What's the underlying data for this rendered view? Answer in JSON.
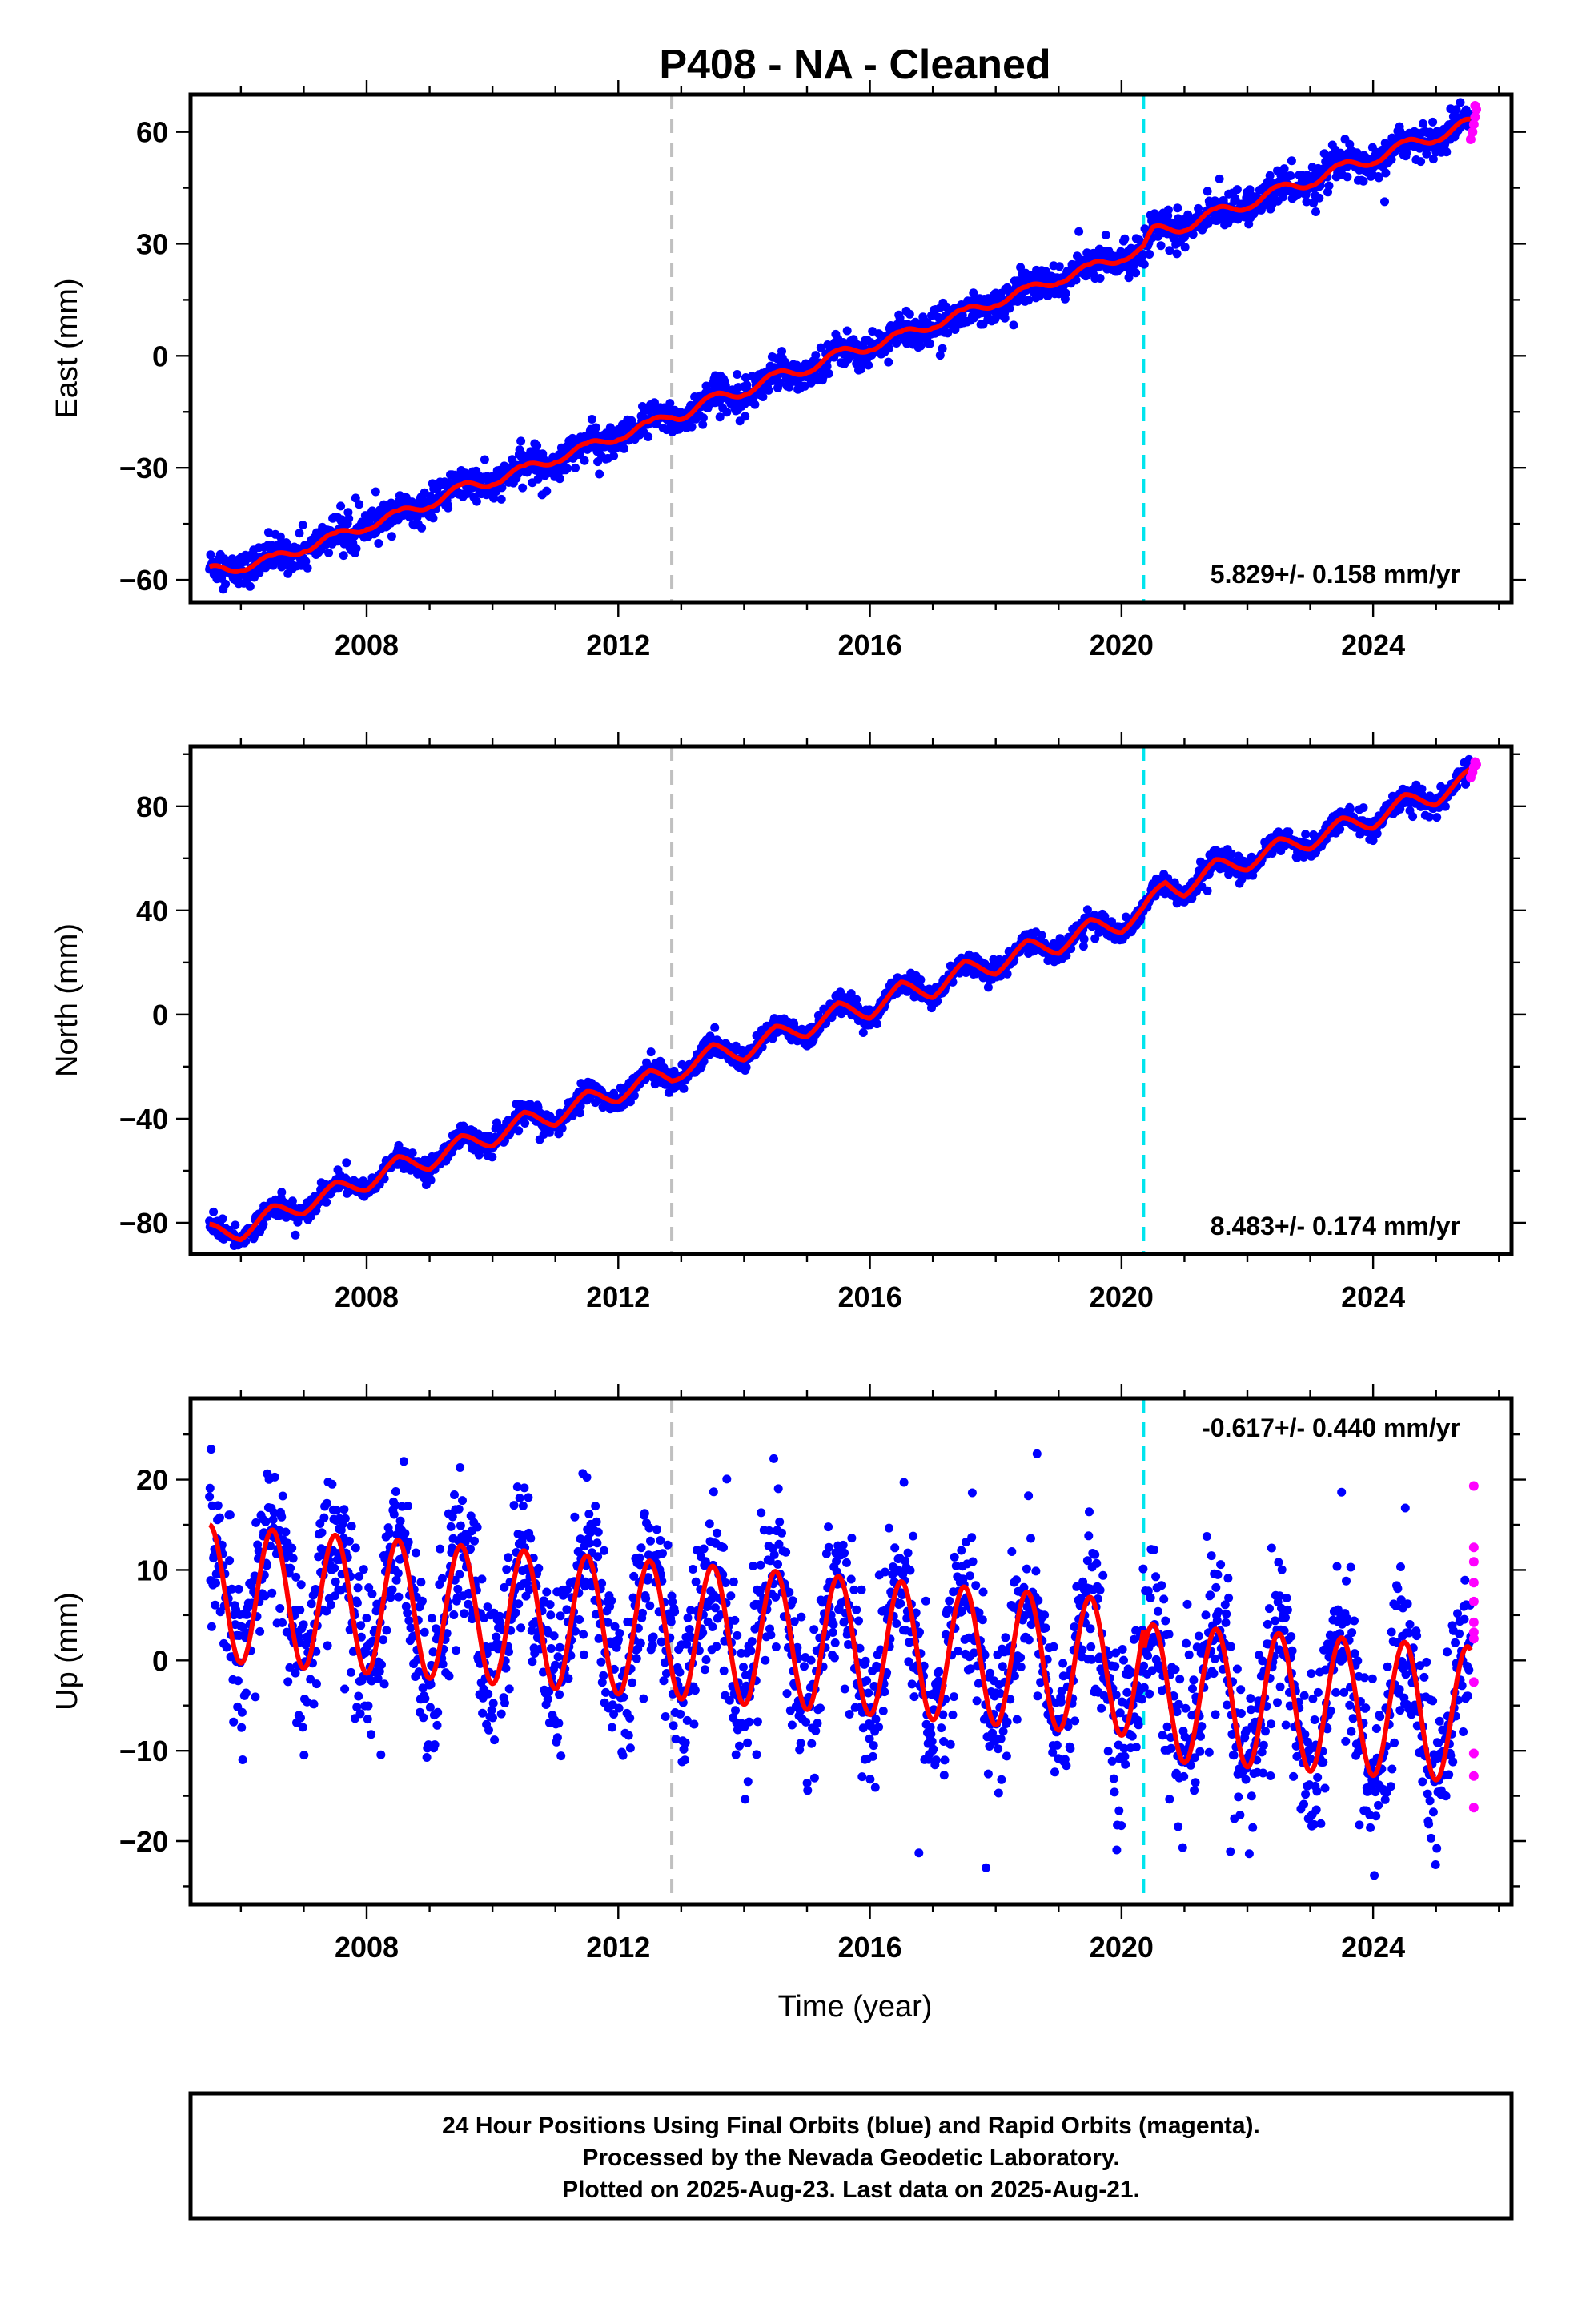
{
  "title": "P408  - NA - Cleaned",
  "caption": {
    "lines": [
      "24 Hour Positions Using Final Orbits (blue) and Rapid Orbits (magenta).",
      "Processed by the Nevada Geodetic Laboratory.",
      "Plotted on 2025-Aug-23. Last data on 2025-Aug-21."
    ]
  },
  "colors": {
    "final_points": "#0000ff",
    "rapid_points": "#ff00ff",
    "model_fit": "#ff0000",
    "event_line_gray": "#c0c0c0",
    "event_line_cyan": "#00e5ee"
  },
  "chart_data": [
    {
      "type": "scatter",
      "id": "east",
      "ylabel": "East (mm)",
      "xlabel": "",
      "rate_label": "5.829+/- 0.158 mm/yr",
      "rate_placement": "bottom-right",
      "xlim": [
        2005.2,
        2026.2
      ],
      "ylim": [
        -66,
        70
      ],
      "yticks": [
        -60,
        -30,
        0,
        30,
        60
      ],
      "xticks": [
        2008,
        2012,
        2016,
        2020,
        2024
      ],
      "xticklabels": [
        "2008",
        "2012",
        "2016",
        "2020",
        "2024"
      ],
      "event_lines": [
        {
          "x": 2012.85,
          "color": "gray"
        },
        {
          "x": 2020.35,
          "color": "cyan"
        }
      ],
      "fit_points": [
        [
          2005.5,
          -59
        ],
        [
          2006,
          -55
        ],
        [
          2006.5,
          -56
        ],
        [
          2007,
          -50
        ],
        [
          2007.5,
          -50
        ],
        [
          2008,
          -44
        ],
        [
          2008.5,
          -44
        ],
        [
          2009,
          -38
        ],
        [
          2009.5,
          -37
        ],
        [
          2010,
          -32
        ],
        [
          2010.5,
          -32
        ],
        [
          2011,
          -26
        ],
        [
          2011.5,
          -26
        ],
        [
          2012,
          -20
        ],
        [
          2012.5,
          -20
        ],
        [
          2012.85,
          -15
        ],
        [
          2013.5,
          -13
        ],
        [
          2014,
          -8
        ],
        [
          2014.5,
          -7
        ],
        [
          2015,
          -2
        ],
        [
          2015.5,
          -1
        ],
        [
          2016,
          4
        ],
        [
          2016.5,
          4
        ],
        [
          2017,
          10
        ],
        [
          2017.5,
          10
        ],
        [
          2018,
          16
        ],
        [
          2018.5,
          16
        ],
        [
          2019,
          22
        ],
        [
          2019.5,
          22
        ],
        [
          2020,
          28
        ],
        [
          2020.35,
          28
        ],
        [
          2020.5,
          32
        ],
        [
          2021,
          36
        ],
        [
          2021.5,
          37
        ],
        [
          2022,
          42
        ],
        [
          2022.5,
          43
        ],
        [
          2023,
          48
        ],
        [
          2023.5,
          49
        ],
        [
          2024,
          54
        ],
        [
          2024.5,
          55
        ],
        [
          2025,
          60
        ],
        [
          2025.55,
          61
        ]
      ],
      "seasonal_amplitude": 2.5,
      "scatter_noise": 2.2,
      "rapid_points": [
        [
          2025.55,
          58
        ],
        [
          2025.58,
          60
        ],
        [
          2025.6,
          62
        ],
        [
          2025.62,
          64
        ],
        [
          2025.64,
          66
        ],
        [
          2025.62,
          67
        ]
      ]
    },
    {
      "type": "scatter",
      "id": "north",
      "ylabel": "North (mm)",
      "xlabel": "",
      "rate_label": "8.483+/- 0.174 mm/yr",
      "rate_placement": "bottom-right",
      "xlim": [
        2005.2,
        2026.2
      ],
      "ylim": [
        -92,
        103
      ],
      "yticks": [
        -80,
        -40,
        0,
        40,
        80
      ],
      "xticks": [
        2008,
        2012,
        2016,
        2020,
        2024
      ],
      "xticklabels": [
        "2008",
        "2012",
        "2016",
        "2020",
        "2024"
      ],
      "event_lines": [
        {
          "x": 2012.85,
          "color": "gray"
        },
        {
          "x": 2020.35,
          "color": "cyan"
        }
      ],
      "fit_points": [
        [
          2005.5,
          -83
        ],
        [
          2006,
          -84
        ],
        [
          2006.5,
          -76
        ],
        [
          2007,
          -74
        ],
        [
          2007.5,
          -67
        ],
        [
          2008,
          -65
        ],
        [
          2008.5,
          -57
        ],
        [
          2009,
          -57
        ],
        [
          2009.5,
          -49
        ],
        [
          2010,
          -48
        ],
        [
          2010.5,
          -40
        ],
        [
          2011,
          -40
        ],
        [
          2011.5,
          -32
        ],
        [
          2012,
          -31
        ],
        [
          2012.5,
          -24
        ],
        [
          2012.85,
          -24
        ],
        [
          2013.5,
          -14
        ],
        [
          2014,
          -15
        ],
        [
          2014.5,
          -7
        ],
        [
          2015,
          -6
        ],
        [
          2015.5,
          2
        ],
        [
          2016,
          1
        ],
        [
          2016.5,
          10
        ],
        [
          2017,
          9
        ],
        [
          2017.5,
          18
        ],
        [
          2018,
          18
        ],
        [
          2018.5,
          26
        ],
        [
          2019,
          26
        ],
        [
          2019.5,
          34
        ],
        [
          2020,
          34
        ],
        [
          2020.35,
          40
        ],
        [
          2020.7,
          50
        ],
        [
          2021,
          48
        ],
        [
          2021.5,
          57
        ],
        [
          2022,
          58
        ],
        [
          2022.5,
          65
        ],
        [
          2023,
          66
        ],
        [
          2023.5,
          73
        ],
        [
          2024,
          74
        ],
        [
          2024.5,
          82
        ],
        [
          2025,
          83
        ],
        [
          2025.55,
          92
        ]
      ],
      "seasonal_amplitude": 2.5,
      "scatter_noise": 2.0,
      "rapid_points": [
        [
          2025.55,
          91
        ],
        [
          2025.58,
          93
        ],
        [
          2025.6,
          95
        ],
        [
          2025.62,
          97
        ],
        [
          2025.64,
          96
        ]
      ]
    },
    {
      "type": "scatter",
      "id": "up",
      "ylabel": "Up (mm)",
      "xlabel": "Time (year)",
      "rate_label": "-0.617+/- 0.440 mm/yr",
      "rate_placement": "top-right",
      "xlim": [
        2005.2,
        2026.2
      ],
      "ylim": [
        -27,
        29
      ],
      "yticks": [
        -20,
        -10,
        0,
        10,
        20
      ],
      "xticks": [
        2008,
        2012,
        2016,
        2020,
        2024
      ],
      "xticklabels": [
        "2008",
        "2012",
        "2016",
        "2020",
        "2024"
      ],
      "event_lines": [
        {
          "x": 2012.85,
          "color": "gray"
        },
        {
          "x": 2020.35,
          "color": "cyan"
        }
      ],
      "fit_points": [
        [
          2005.5,
          7.5
        ],
        [
          2020.35,
          -1
        ],
        [
          2020.36,
          -3.5
        ],
        [
          2025.55,
          -6
        ]
      ],
      "seasonal_amplitude": 7.5,
      "scatter_noise": 4.5,
      "rapid_points": [
        [
          2025.6,
          19.3
        ],
        [
          2025.6,
          12.5
        ],
        [
          2025.6,
          10.9
        ],
        [
          2025.6,
          8.6
        ],
        [
          2025.6,
          6.5
        ],
        [
          2025.6,
          4.2
        ],
        [
          2025.6,
          3.1
        ],
        [
          2025.6,
          2.4
        ],
        [
          2025.6,
          -2.4
        ],
        [
          2025.6,
          -10.3
        ],
        [
          2025.6,
          -12.8
        ],
        [
          2025.6,
          -16.3
        ]
      ]
    }
  ]
}
